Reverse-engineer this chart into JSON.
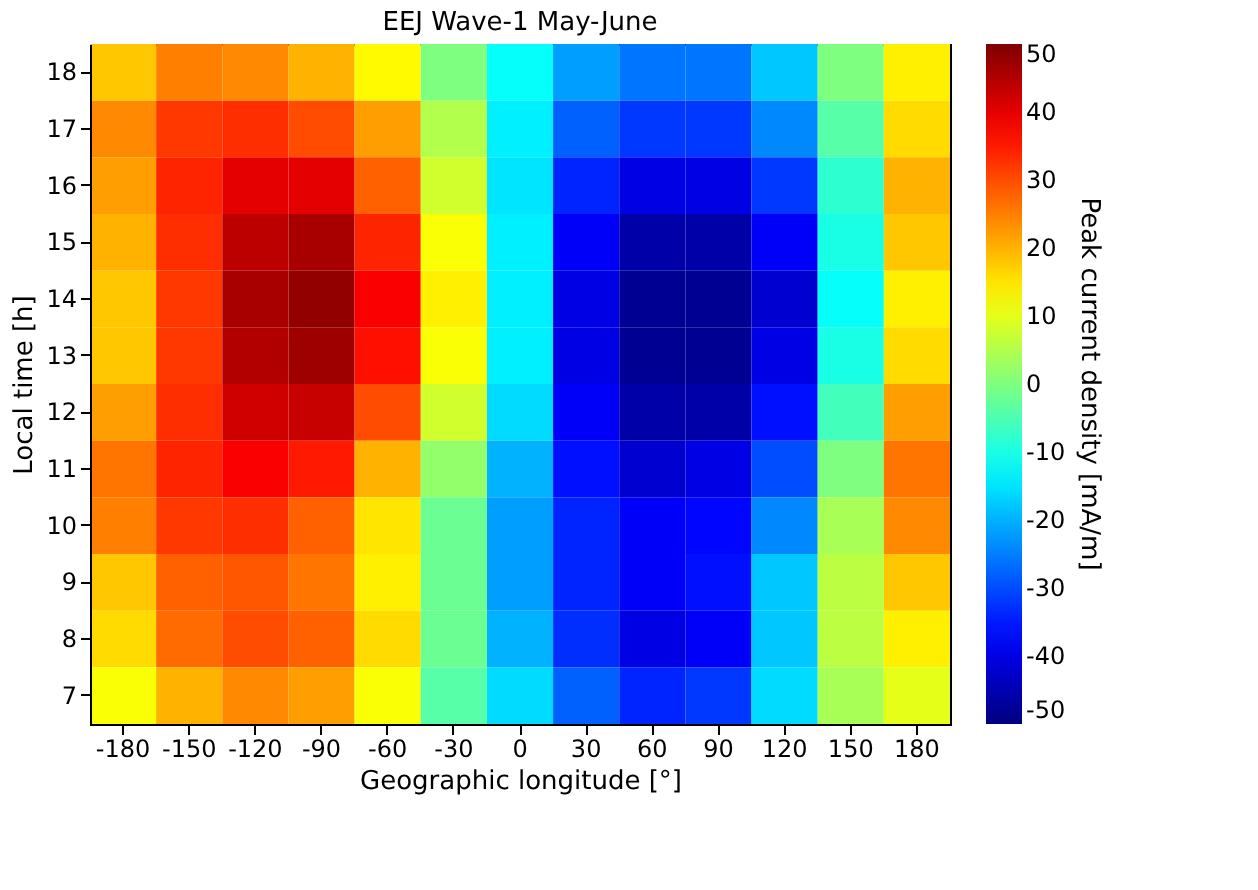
{
  "chart_data": {
    "type": "heatmap",
    "title": "EEJ  Wave-1  May-June",
    "xlabel": "Geographic longitude [°]",
    "ylabel": "Local time [h]",
    "clabel": "Peak current density [mA/m]",
    "categories": [
      "-180",
      "-150",
      "-120",
      "-90",
      "-60",
      "-30",
      "0",
      "30",
      "60",
      "90",
      "120",
      "150",
      "180"
    ],
    "y_categories": [
      "18",
      "17",
      "16",
      "15",
      "14",
      "13",
      "12",
      "11",
      "10",
      "9",
      "8",
      "7"
    ],
    "cells": [
      [
        18,
        25,
        24,
        20,
        13,
        0,
        -12,
        -22,
        -26,
        -26,
        -18,
        0,
        14
      ],
      [
        24,
        32,
        33,
        30,
        22,
        5,
        -14,
        -28,
        -32,
        -32,
        -24,
        -4,
        16
      ],
      [
        22,
        34,
        40,
        40,
        28,
        8,
        -15,
        -34,
        -40,
        -40,
        -32,
        -8,
        20
      ],
      [
        20,
        33,
        44,
        46,
        34,
        12,
        -14,
        -38,
        -46,
        -46,
        -38,
        -10,
        18
      ],
      [
        18,
        32,
        46,
        48,
        38,
        14,
        -14,
        -40,
        -48,
        -48,
        -42,
        -12,
        14
      ],
      [
        18,
        32,
        45,
        47,
        36,
        12,
        -14,
        -40,
        -48,
        -48,
        -40,
        -10,
        16
      ],
      [
        22,
        33,
        42,
        43,
        30,
        8,
        -16,
        -38,
        -46,
        -46,
        -36,
        -6,
        22
      ],
      [
        26,
        34,
        38,
        35,
        20,
        2,
        -20,
        -36,
        -42,
        -40,
        -30,
        0,
        26
      ],
      [
        25,
        32,
        33,
        28,
        15,
        -2,
        -22,
        -34,
        -38,
        -37,
        -24,
        4,
        24
      ],
      [
        18,
        28,
        29,
        26,
        14,
        -2,
        -22,
        -34,
        -38,
        -36,
        -18,
        6,
        18
      ],
      [
        16,
        27,
        30,
        28,
        16,
        -2,
        -20,
        -33,
        -40,
        -38,
        -18,
        6,
        14
      ],
      [
        12,
        20,
        24,
        22,
        12,
        -4,
        -16,
        -28,
        -34,
        -32,
        -16,
        4,
        10
      ]
    ],
    "clim": [
      -50,
      50
    ],
    "cticks": [
      -50,
      -40,
      -30,
      -20,
      -10,
      0,
      10,
      20,
      30,
      40,
      50
    ]
  }
}
